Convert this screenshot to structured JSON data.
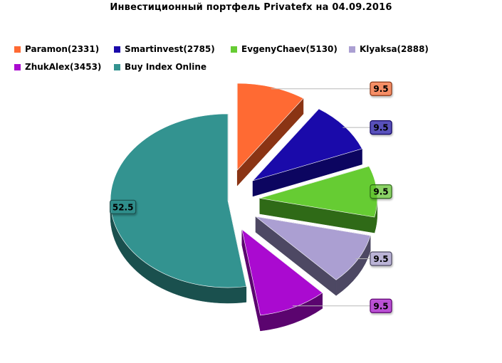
{
  "chart_data": {
    "type": "pie",
    "title": "Инвестиционный  портфель Privatefx на 04.09.2016",
    "legend_position": "top",
    "slices": [
      {
        "name": "Paramon(2331)",
        "value": 9.5,
        "label": "9.5",
        "color": "#ff6a33",
        "dark": "#8a3414",
        "exploded": true
      },
      {
        "name": "Smartinvest(2785)",
        "value": 9.5,
        "label": "9.5",
        "color": "#1a0aaa",
        "dark": "#0c0560",
        "exploded": true
      },
      {
        "name": "EvgenyChaev(5130)",
        "value": 9.5,
        "label": "9.5",
        "color": "#66cc33",
        "dark": "#2f6a17",
        "exploded": true
      },
      {
        "name": "Klyaksa(2888)",
        "value": 9.5,
        "label": "9.5",
        "color": "#ab9fd2",
        "dark": "#4d4863",
        "exploded": true
      },
      {
        "name": "ZhukAlex(3453)",
        "value": 9.5,
        "label": "9.5",
        "color": "#aa0ad0",
        "dark": "#5b046f",
        "exploded": true
      },
      {
        "name": "Buy Index Online",
        "value": 52.5,
        "label": "52.5",
        "color": "#339390",
        "dark": "#1a504e",
        "exploded": false
      }
    ]
  }
}
